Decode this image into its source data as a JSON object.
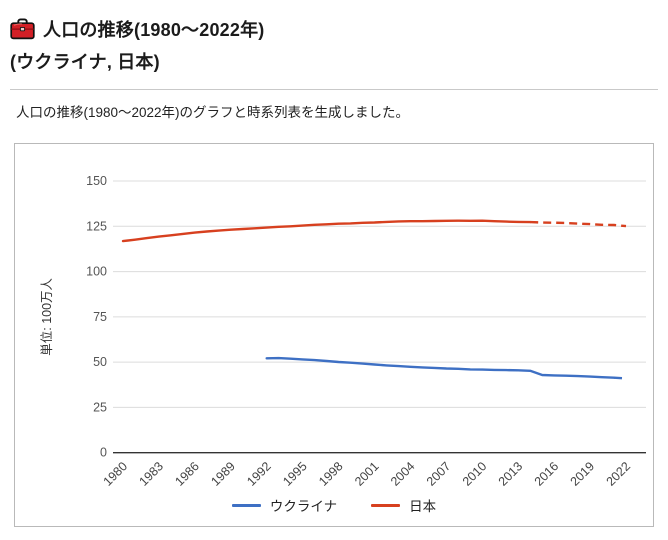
{
  "header": {
    "icon": "toolbox-icon",
    "title_line1": "人口の推移(1980～2022年)",
    "title_line2": "(ウクライナ, 日本)"
  },
  "message": "人口の推移(1980～2022年)のグラフと時系列表を生成しました。",
  "colors": {
    "ukraine_line": "#3e70c4",
    "japan_line": "#d7401f",
    "gridline": "#dcdcdc",
    "axis": "#333333",
    "tick_text": "#555555",
    "icon_red": "#d21f26"
  },
  "chart_data": {
    "type": "line",
    "title": "",
    "ylabel": "単位: 100万人",
    "xlabel": "",
    "grid": true,
    "legend_position": "bottom",
    "ylim": [
      0,
      150
    ],
    "yticks": [
      0,
      25,
      50,
      75,
      100,
      125,
      150
    ],
    "xticks": [
      1980,
      1983,
      1986,
      1989,
      1992,
      1995,
      1998,
      2001,
      2004,
      2007,
      2010,
      2013,
      2016,
      2019,
      2022
    ],
    "x": [
      1980,
      1981,
      1982,
      1983,
      1984,
      1985,
      1986,
      1987,
      1988,
      1989,
      1990,
      1991,
      1992,
      1993,
      1994,
      1995,
      1996,
      1997,
      1998,
      1999,
      2000,
      2001,
      2002,
      2003,
      2004,
      2005,
      2006,
      2007,
      2008,
      2009,
      2010,
      2011,
      2012,
      2013,
      2014,
      2015,
      2016,
      2017,
      2018,
      2019,
      2020,
      2021,
      2022
    ],
    "series": [
      {
        "name": "ウクライナ",
        "color": "#3e70c4",
        "dash_from_x": 2021,
        "values": [
          null,
          null,
          null,
          null,
          null,
          null,
          null,
          null,
          null,
          null,
          null,
          null,
          52.1,
          52.2,
          51.9,
          51.5,
          51.1,
          50.6,
          50.1,
          49.7,
          49.2,
          48.7,
          48.2,
          47.8,
          47.4,
          47.1,
          46.8,
          46.5,
          46.3,
          46.0,
          45.9,
          45.7,
          45.6,
          45.5,
          45.2,
          42.9,
          42.7,
          42.5,
          42.3,
          42.0,
          41.7,
          41.4,
          41.0
        ]
      },
      {
        "name": "日本",
        "color": "#d7401f",
        "dash_from_x": 2014,
        "values": [
          116.8,
          117.6,
          118.5,
          119.3,
          120.0,
          120.8,
          121.5,
          122.1,
          122.6,
          123.1,
          123.5,
          123.9,
          124.3,
          124.7,
          125.0,
          125.4,
          125.8,
          126.1,
          126.4,
          126.6,
          126.9,
          127.1,
          127.4,
          127.7,
          127.8,
          127.8,
          127.9,
          128.0,
          128.1,
          128.0,
          128.1,
          127.8,
          127.6,
          127.4,
          127.3,
          127.1,
          127.0,
          126.8,
          126.5,
          126.2,
          125.8,
          125.7,
          125.1
        ]
      }
    ]
  }
}
